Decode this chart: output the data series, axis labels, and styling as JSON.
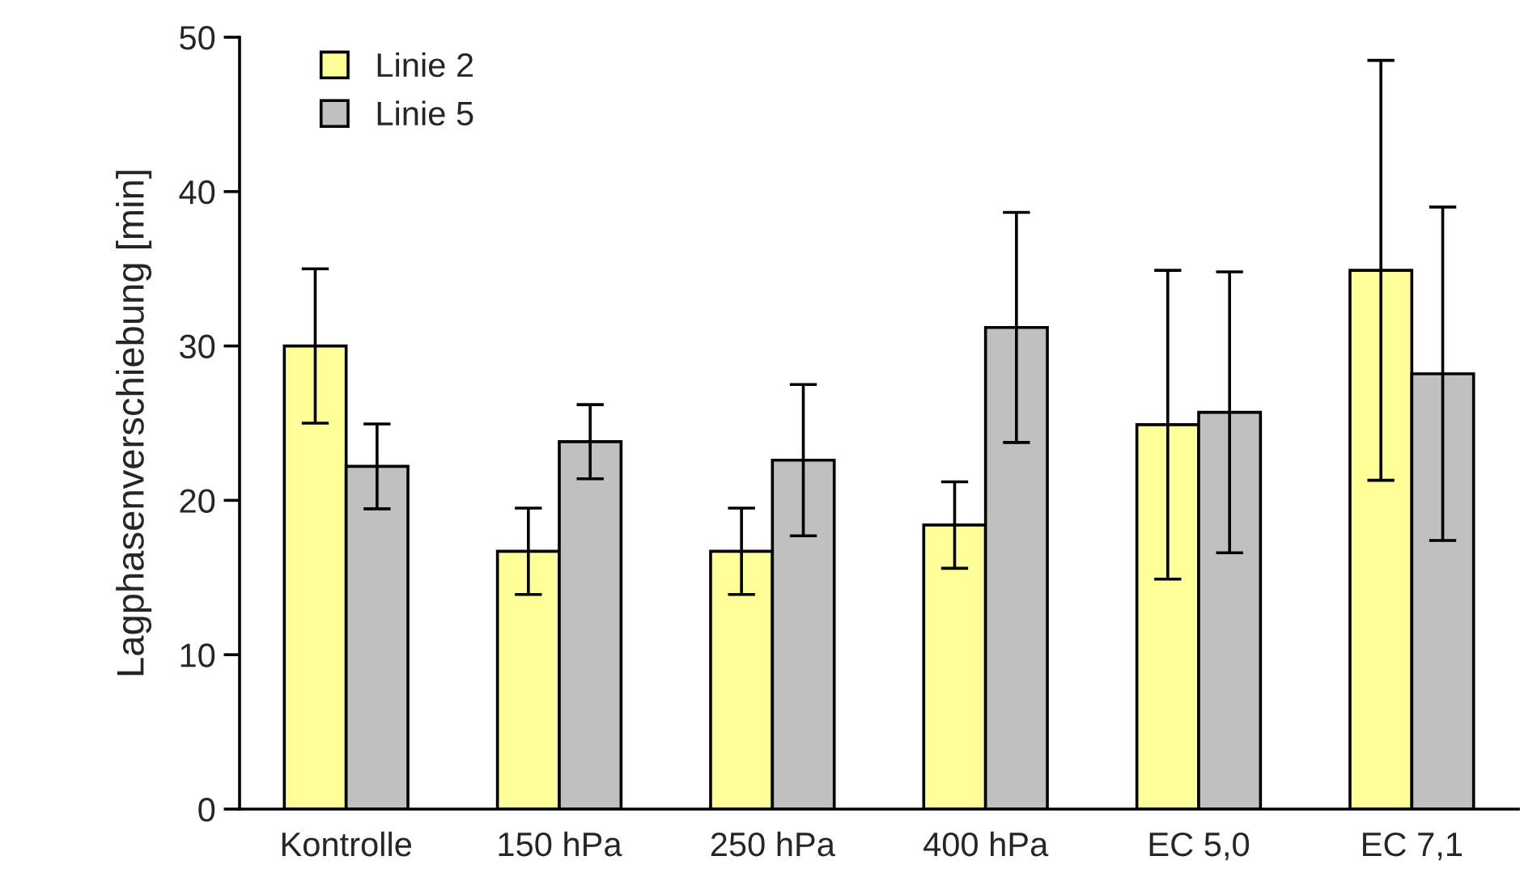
{
  "chart_data": {
    "type": "bar",
    "ylabel": "Lagphasenverschiebung [min]",
    "categories": [
      "Kontrolle",
      "150 hPa",
      "250 hPa",
      "400 hPa",
      "EC 5,0",
      "EC 7,1"
    ],
    "series": [
      {
        "name": "Linie 2",
        "color": "#ffff99",
        "values": [
          30,
          16.7,
          16.7,
          18.4,
          24.9,
          34.9
        ],
        "errors": [
          5,
          2.8,
          2.8,
          2.8,
          10,
          13.6
        ]
      },
      {
        "name": "Linie 5",
        "color": "#c0c0c0",
        "values": [
          22.2,
          23.8,
          22.6,
          31.2,
          25.7,
          28.2
        ],
        "errors": [
          2.75,
          2.4,
          4.9,
          7.45,
          9.1,
          10.8
        ]
      }
    ],
    "ylim": [
      0,
      50
    ],
    "yticks": [
      0,
      10,
      20,
      30,
      40,
      50
    ],
    "grid": false,
    "legend": "top left"
  }
}
